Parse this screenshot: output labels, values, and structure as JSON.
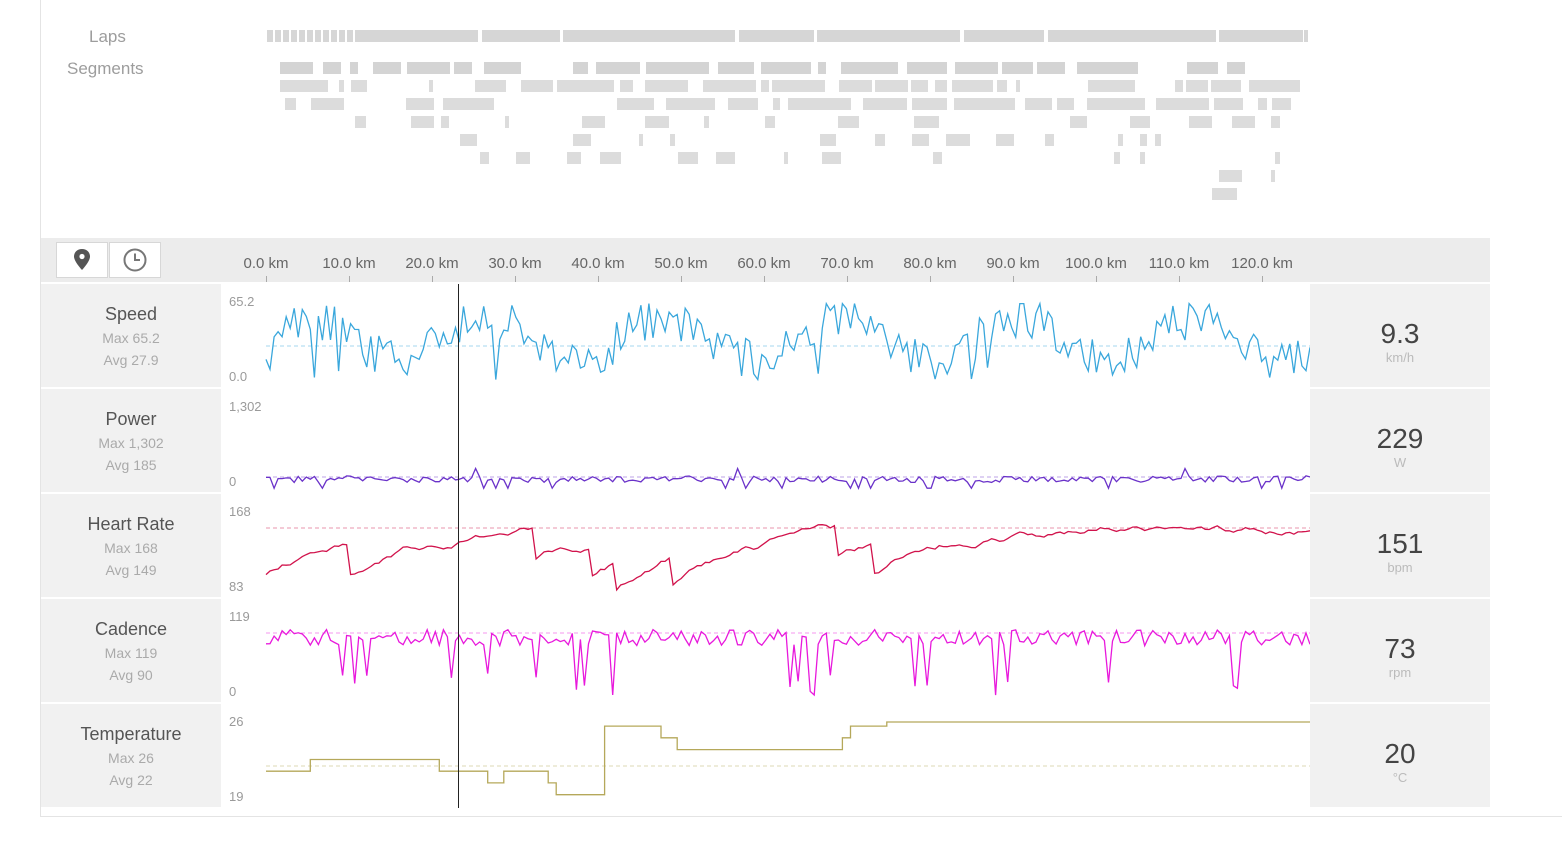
{
  "labels": {
    "laps": "Laps",
    "segments": "Segments"
  },
  "toggles": [
    {
      "icon": "map-pin-icon"
    },
    {
      "icon": "clock-icon"
    }
  ],
  "km_ticks": [
    "0.0 km",
    "10.0 km",
    "20.0 km",
    "30.0 km",
    "40.0 km",
    "50.0 km",
    "60.0 km",
    "70.0 km",
    "80.0 km",
    "90.0 km",
    "100.0 km",
    "110.0 km",
    "120.0 km"
  ],
  "streams": [
    {
      "id": "speed",
      "name": "Speed",
      "max": "Max 65.2",
      "avg": "Avg 27.9",
      "ytop": "65.2",
      "ybot": "0.0",
      "current": "9.3",
      "unit": "km/h",
      "color": "#3aa7dc"
    },
    {
      "id": "power",
      "name": "Power",
      "max": "Max 1,302",
      "avg": "Avg 185",
      "ytop": "1,302",
      "ybot": "0",
      "current": "229",
      "unit": "W",
      "color": "#6a32c9"
    },
    {
      "id": "heartrate",
      "name": "Heart Rate",
      "max": "Max 168",
      "avg": "Avg 149",
      "ytop": "168",
      "ybot": "83",
      "current": "151",
      "unit": "bpm",
      "color": "#d1134c"
    },
    {
      "id": "cadence",
      "name": "Cadence",
      "max": "Max 119",
      "avg": "Avg 90",
      "ytop": "119",
      "ybot": "0",
      "current": "73",
      "unit": "rpm",
      "color": "#e819dc"
    },
    {
      "id": "temperature",
      "name": "Temperature",
      "max": "Max 26",
      "avg": "Avg 22",
      "ytop": "26",
      "ybot": "19",
      "current": "20",
      "unit": "°C",
      "color": "#b5a85a"
    }
  ]
}
